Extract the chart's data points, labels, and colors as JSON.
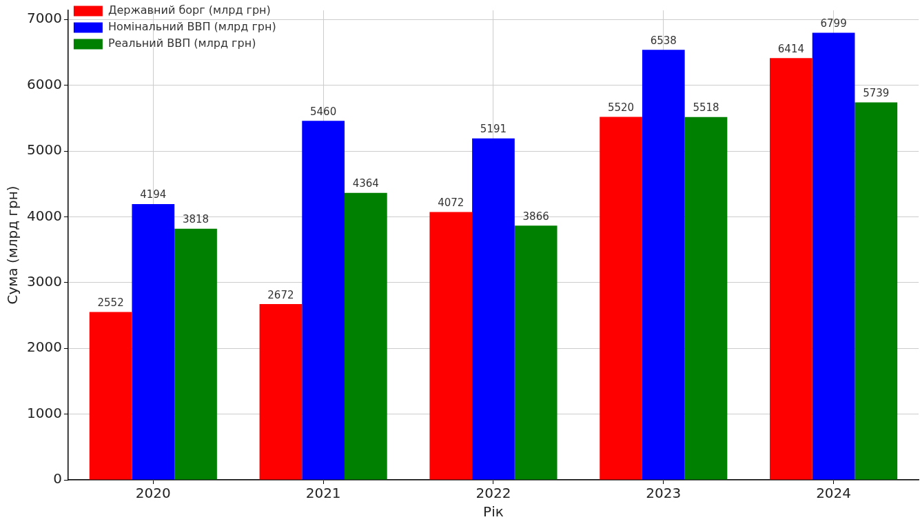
{
  "chart_data": {
    "type": "bar",
    "xlabel": "Рік",
    "ylabel": "Сума (млрд грн)",
    "categories": [
      "2020",
      "2021",
      "2022",
      "2023",
      "2024"
    ],
    "series": [
      {
        "name": "Державний борг (млрд грн)",
        "color": "#ff0000",
        "values": [
          2552,
          2672,
          4072,
          5520,
          6414
        ]
      },
      {
        "name": "Номінальний ВВП (млрд грн)",
        "color": "#0000ff",
        "values": [
          4194,
          5460,
          5191,
          6538,
          6799
        ]
      },
      {
        "name": "Реальний ВВП (млрд грн)",
        "color": "#008000",
        "values": [
          3818,
          4364,
          3866,
          5518,
          5739
        ]
      }
    ],
    "ylim": [
      0,
      7139
    ],
    "yticks": [
      0,
      1000,
      2000,
      3000,
      4000,
      5000,
      6000,
      7000
    ],
    "grid": true,
    "legend": "top left",
    "data_labels": true
  }
}
